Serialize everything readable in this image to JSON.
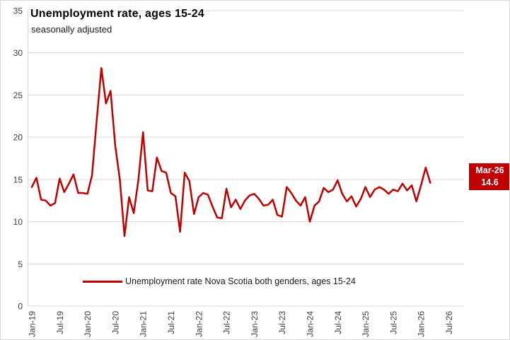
{
  "chart": {
    "title": "Unemployment rate, ages 15-24",
    "subtitle": "seasonally adjusted",
    "legend_label": "Unemployment rate Nova Scotia both genders, ages 15-24",
    "callout": {
      "date": "Mar-26",
      "value": "14.6"
    }
  },
  "colors": {
    "line": "#C00000",
    "grid": "#D9D9D9",
    "axis_text": "#404040",
    "callout_bg": "#C00000",
    "callout_text": "#FFFFFF",
    "border": "#D9D9D9",
    "background": "#FFFFFF"
  },
  "chart_data": {
    "type": "line",
    "title": "Unemployment rate, ages 15-24",
    "subtitle": "seasonally adjusted",
    "frequency": "monthly",
    "x_start": "Jan-2019",
    "x_end": "Mar-2026",
    "x_tick_labels": [
      "Jan-19",
      "Jul-19",
      "Jan-20",
      "Jul-20",
      "Jan-21",
      "Jul-21",
      "Jan-22",
      "Jul-22",
      "Jan-23",
      "Jul-23",
      "Jan-24",
      "Jul-24",
      "Jan-25",
      "Jul-25",
      "Jan-26",
      "Jul-26"
    ],
    "y_ticks": [
      0,
      5,
      10,
      15,
      20,
      25,
      30,
      35
    ],
    "ylim": [
      0,
      35
    ],
    "grid": "horizontal",
    "legend_position": "bottom",
    "series": [
      {
        "name": "Unemployment rate Nova Scotia both genders, ages 15-24",
        "color": "#C00000",
        "values": [
          14.1,
          15.2,
          12.6,
          12.5,
          11.9,
          12.2,
          15.1,
          13.5,
          14.5,
          15.6,
          13.4,
          13.4,
          13.3,
          15.5,
          22.0,
          28.2,
          24.0,
          25.5,
          19.0,
          15.0,
          8.3,
          12.9,
          11.0,
          15.0,
          20.6,
          13.7,
          13.6,
          17.6,
          16.0,
          15.8,
          13.4,
          13.0,
          8.8,
          15.8,
          14.8,
          10.9,
          12.9,
          13.4,
          13.2,
          11.8,
          10.5,
          10.4,
          13.9,
          11.7,
          12.6,
          11.5,
          12.5,
          13.1,
          13.3,
          12.7,
          11.9,
          12.0,
          12.6,
          10.8,
          10.6,
          14.1,
          13.4,
          12.5,
          11.9,
          12.9,
          10.0,
          11.9,
          12.4,
          14.0,
          13.5,
          13.8,
          14.9,
          13.3,
          12.4,
          13.0,
          11.8,
          12.7,
          14.1,
          12.9,
          13.8,
          14.1,
          13.8,
          13.3,
          13.8,
          13.6,
          14.5,
          13.7,
          14.3,
          12.4,
          14.3,
          16.4,
          14.6
        ]
      }
    ],
    "last_point_label": {
      "date": "Mar-26",
      "value": 14.6
    }
  }
}
